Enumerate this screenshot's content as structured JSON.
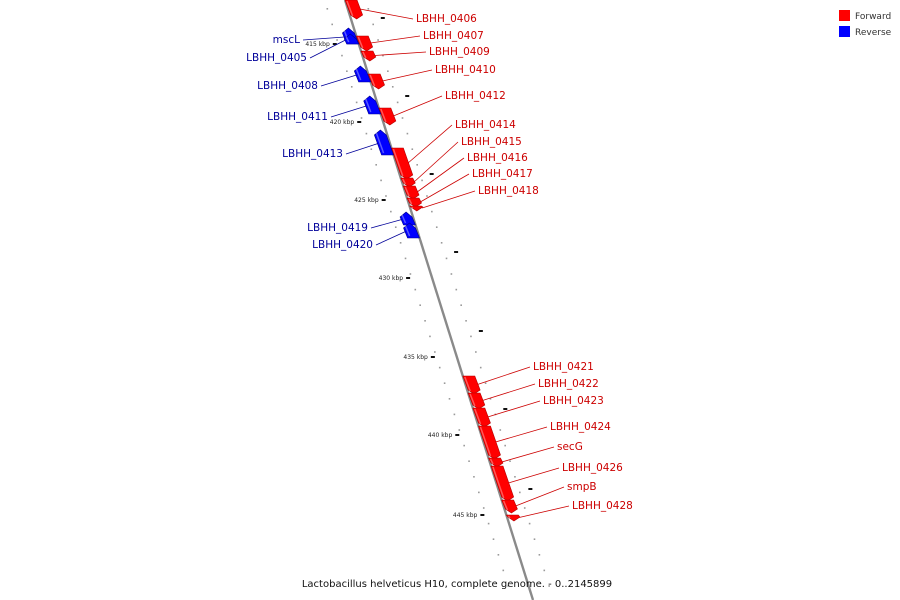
{
  "colors": {
    "forward": "#ff0000",
    "reverse": "#0000ff",
    "forward_label": "#cc0000",
    "reverse_label": "#000099"
  },
  "legend": [
    {
      "strand": "forward",
      "label": "Forward"
    },
    {
      "strand": "reverse",
      "label": "Reverse"
    }
  ],
  "footer": "Lactobacillus helveticus H10, complete genome. - 0..2145899",
  "ticks": [
    "415 kbp",
    "420 kbp",
    "425 kbp",
    "430 kbp",
    "435 kbp",
    "440 kbp",
    "445 kbp"
  ],
  "genes": [
    {
      "name": "LBHH_0406",
      "strand": "forward"
    },
    {
      "name": "LBHH_0407",
      "strand": "forward"
    },
    {
      "name": "LBHH_0409",
      "strand": "forward"
    },
    {
      "name": "LBHH_0410",
      "strand": "forward"
    },
    {
      "name": "LBHH_0412",
      "strand": "forward"
    },
    {
      "name": "LBHH_0414",
      "strand": "forward"
    },
    {
      "name": "LBHH_0415",
      "strand": "forward"
    },
    {
      "name": "LBHH_0416",
      "strand": "forward"
    },
    {
      "name": "LBHH_0417",
      "strand": "forward"
    },
    {
      "name": "LBHH_0418",
      "strand": "forward"
    },
    {
      "name": "LBHH_0421",
      "strand": "forward"
    },
    {
      "name": "LBHH_0422",
      "strand": "forward"
    },
    {
      "name": "LBHH_0423",
      "strand": "forward"
    },
    {
      "name": "LBHH_0424",
      "strand": "forward"
    },
    {
      "name": "secG",
      "strand": "forward"
    },
    {
      "name": "LBHH_0426",
      "strand": "forward"
    },
    {
      "name": "smpB",
      "strand": "forward"
    },
    {
      "name": "LBHH_0428",
      "strand": "forward"
    },
    {
      "name": "mscL",
      "strand": "reverse"
    },
    {
      "name": "LBHH_0405",
      "strand": "reverse"
    },
    {
      "name": "LBHH_0408",
      "strand": "reverse"
    },
    {
      "name": "LBHH_0411",
      "strand": "reverse"
    },
    {
      "name": "LBHH_0413",
      "strand": "reverse"
    },
    {
      "name": "LBHH_0419",
      "strand": "reverse"
    },
    {
      "name": "LBHH_0420",
      "strand": "reverse"
    }
  ]
}
